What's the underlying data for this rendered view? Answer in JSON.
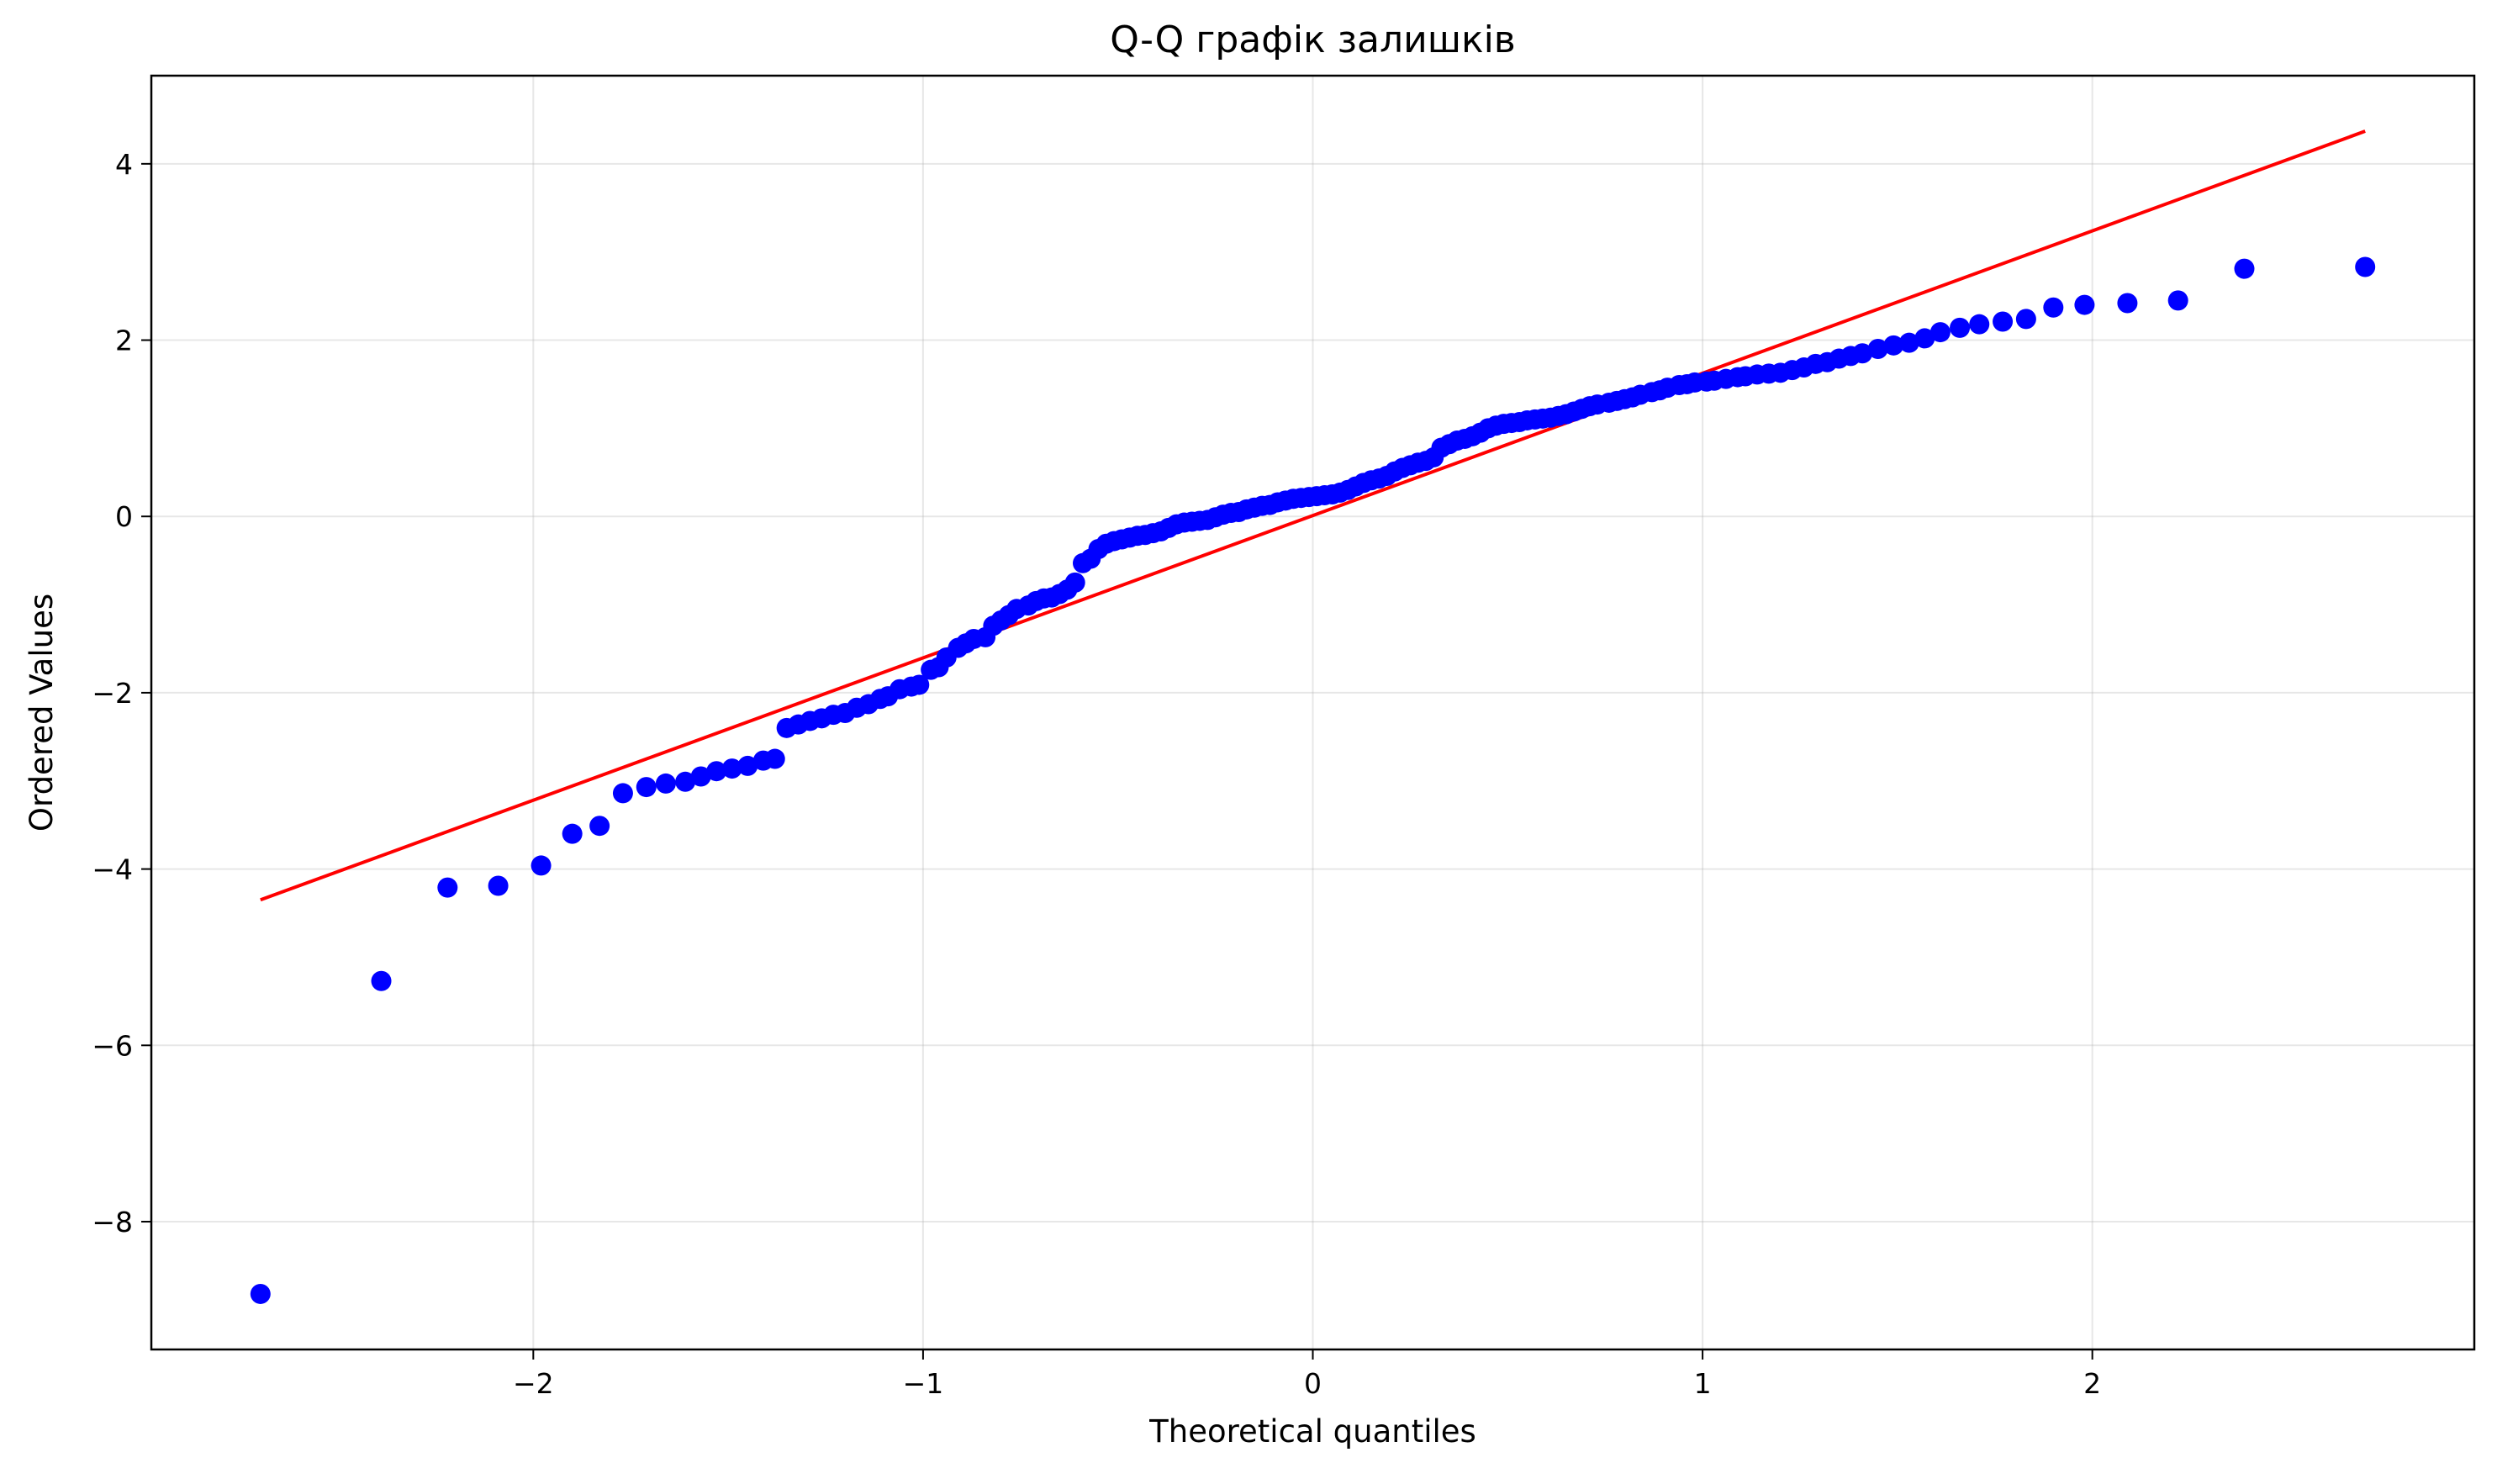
{
  "chart_data": {
    "type": "scatter",
    "title": "Q-Q графік залишків",
    "xlabel": "Theoretical quantiles",
    "ylabel": "Ordered Values",
    "xlim": [
      -2.98,
      2.98
    ],
    "ylim": [
      -9.45,
      5.0
    ],
    "grid": true,
    "x_ticks": [
      -2,
      -1,
      0,
      1,
      2
    ],
    "x_tick_labels": [
      "−2",
      "−1",
      "0",
      "1",
      "2"
    ],
    "y_ticks": [
      -8,
      -6,
      -4,
      -2,
      0,
      2,
      4
    ],
    "y_tick_labels": [
      "−8",
      "−6",
      "−4",
      "−2",
      "0",
      "2",
      "4"
    ],
    "series": [
      {
        "kind": "points",
        "color": "#0000ff",
        "points": [
          [
            -2.7,
            -8.82
          ],
          [
            -2.39,
            -5.27
          ],
          [
            -2.22,
            -4.21
          ],
          [
            -2.09,
            -4.19
          ],
          [
            -1.98,
            -3.96
          ],
          [
            -1.9,
            -3.6
          ],
          [
            -1.83,
            -3.51
          ],
          [
            -1.77,
            -3.14
          ],
          [
            -1.71,
            -3.07
          ],
          [
            -1.66,
            -3.03
          ],
          [
            -1.61,
            -3.01
          ],
          [
            -1.57,
            -2.95
          ],
          [
            -1.53,
            -2.89
          ],
          [
            -1.49,
            -2.86
          ],
          [
            -1.45,
            -2.83
          ],
          [
            -1.41,
            -2.77
          ],
          [
            -1.38,
            -2.75
          ],
          [
            -1.35,
            -2.4
          ],
          [
            -1.32,
            -2.36
          ],
          [
            -1.29,
            -2.32
          ],
          [
            -1.26,
            -2.29
          ],
          [
            -1.23,
            -2.25
          ],
          [
            -1.2,
            -2.23
          ],
          [
            -1.17,
            -2.17
          ],
          [
            -1.14,
            -2.13
          ],
          [
            -1.11,
            -2.07
          ],
          [
            -1.09,
            -2.04
          ],
          [
            -1.06,
            -1.96
          ],
          [
            -1.03,
            -1.93
          ],
          [
            -1.01,
            -1.91
          ],
          [
            -0.98,
            -1.74
          ],
          [
            -0.96,
            -1.71
          ],
          [
            -0.94,
            -1.6
          ],
          [
            -0.91,
            -1.49
          ],
          [
            -0.89,
            -1.44
          ],
          [
            -0.87,
            -1.39
          ],
          [
            -0.84,
            -1.37
          ],
          [
            -0.82,
            -1.24
          ],
          [
            -0.8,
            -1.18
          ],
          [
            -0.78,
            -1.12
          ],
          [
            -0.76,
            -1.05
          ],
          [
            -0.73,
            -1.01
          ],
          [
            -0.71,
            -0.96
          ],
          [
            -0.69,
            -0.93
          ],
          [
            -0.67,
            -0.92
          ],
          [
            -0.65,
            -0.88
          ],
          [
            -0.63,
            -0.83
          ],
          [
            -0.61,
            -0.75
          ],
          [
            -0.59,
            -0.53
          ],
          [
            -0.57,
            -0.48
          ],
          [
            -0.55,
            -0.37
          ],
          [
            -0.53,
            -0.31
          ],
          [
            -0.51,
            -0.28
          ],
          [
            -0.49,
            -0.26
          ],
          [
            -0.47,
            -0.24
          ],
          [
            -0.45,
            -0.22
          ],
          [
            -0.43,
            -0.21
          ],
          [
            -0.41,
            -0.19
          ],
          [
            -0.39,
            -0.17
          ],
          [
            -0.37,
            -0.13
          ],
          [
            -0.35,
            -0.09
          ],
          [
            -0.33,
            -0.07
          ],
          [
            -0.31,
            -0.06
          ],
          [
            -0.29,
            -0.05
          ],
          [
            -0.27,
            -0.04
          ],
          [
            -0.25,
            -0.01
          ],
          [
            -0.23,
            0.02
          ],
          [
            -0.21,
            0.04
          ],
          [
            -0.19,
            0.05
          ],
          [
            -0.17,
            0.08
          ],
          [
            -0.15,
            0.1
          ],
          [
            -0.13,
            0.12
          ],
          [
            -0.11,
            0.13
          ],
          [
            -0.09,
            0.16
          ],
          [
            -0.07,
            0.18
          ],
          [
            -0.05,
            0.2
          ],
          [
            -0.03,
            0.21
          ],
          [
            -0.01,
            0.22
          ],
          [
            0.01,
            0.23
          ],
          [
            0.03,
            0.24
          ],
          [
            0.05,
            0.25
          ],
          [
            0.07,
            0.27
          ],
          [
            0.09,
            0.3
          ],
          [
            0.11,
            0.34
          ],
          [
            0.13,
            0.38
          ],
          [
            0.15,
            0.41
          ],
          [
            0.17,
            0.43
          ],
          [
            0.19,
            0.46
          ],
          [
            0.21,
            0.51
          ],
          [
            0.23,
            0.55
          ],
          [
            0.25,
            0.58
          ],
          [
            0.27,
            0.61
          ],
          [
            0.29,
            0.63
          ],
          [
            0.31,
            0.67
          ],
          [
            0.33,
            0.78
          ],
          [
            0.35,
            0.82
          ],
          [
            0.37,
            0.86
          ],
          [
            0.39,
            0.88
          ],
          [
            0.41,
            0.91
          ],
          [
            0.43,
            0.95
          ],
          [
            0.45,
            1.0
          ],
          [
            0.47,
            1.03
          ],
          [
            0.49,
            1.05
          ],
          [
            0.51,
            1.06
          ],
          [
            0.53,
            1.07
          ],
          [
            0.55,
            1.09
          ],
          [
            0.57,
            1.1
          ],
          [
            0.59,
            1.11
          ],
          [
            0.61,
            1.12
          ],
          [
            0.63,
            1.14
          ],
          [
            0.65,
            1.16
          ],
          [
            0.67,
            1.19
          ],
          [
            0.69,
            1.22
          ],
          [
            0.71,
            1.25
          ],
          [
            0.73,
            1.27
          ],
          [
            0.76,
            1.29
          ],
          [
            0.78,
            1.31
          ],
          [
            0.8,
            1.33
          ],
          [
            0.82,
            1.35
          ],
          [
            0.84,
            1.38
          ],
          [
            0.87,
            1.41
          ],
          [
            0.89,
            1.43
          ],
          [
            0.91,
            1.46
          ],
          [
            0.94,
            1.49
          ],
          [
            0.96,
            1.5
          ],
          [
            0.98,
            1.52
          ],
          [
            1.01,
            1.53
          ],
          [
            1.03,
            1.54
          ],
          [
            1.06,
            1.56
          ],
          [
            1.09,
            1.58
          ],
          [
            1.11,
            1.59
          ],
          [
            1.14,
            1.61
          ],
          [
            1.17,
            1.62
          ],
          [
            1.2,
            1.63
          ],
          [
            1.23,
            1.66
          ],
          [
            1.26,
            1.69
          ],
          [
            1.29,
            1.73
          ],
          [
            1.32,
            1.75
          ],
          [
            1.35,
            1.79
          ],
          [
            1.38,
            1.82
          ],
          [
            1.41,
            1.85
          ],
          [
            1.45,
            1.9
          ],
          [
            1.49,
            1.94
          ],
          [
            1.53,
            1.97
          ],
          [
            1.57,
            2.02
          ],
          [
            1.61,
            2.09
          ],
          [
            1.66,
            2.14
          ],
          [
            1.71,
            2.18
          ],
          [
            1.77,
            2.21
          ],
          [
            1.83,
            2.24
          ],
          [
            1.9,
            2.37
          ],
          [
            1.98,
            2.4
          ],
          [
            2.09,
            2.42
          ],
          [
            2.22,
            2.45
          ],
          [
            2.39,
            2.81
          ],
          [
            2.7,
            2.83
          ]
        ]
      },
      {
        "kind": "line",
        "color": "#ff0000",
        "points": [
          [
            -2.7,
            -4.35
          ],
          [
            2.7,
            4.37
          ]
        ]
      }
    ]
  }
}
